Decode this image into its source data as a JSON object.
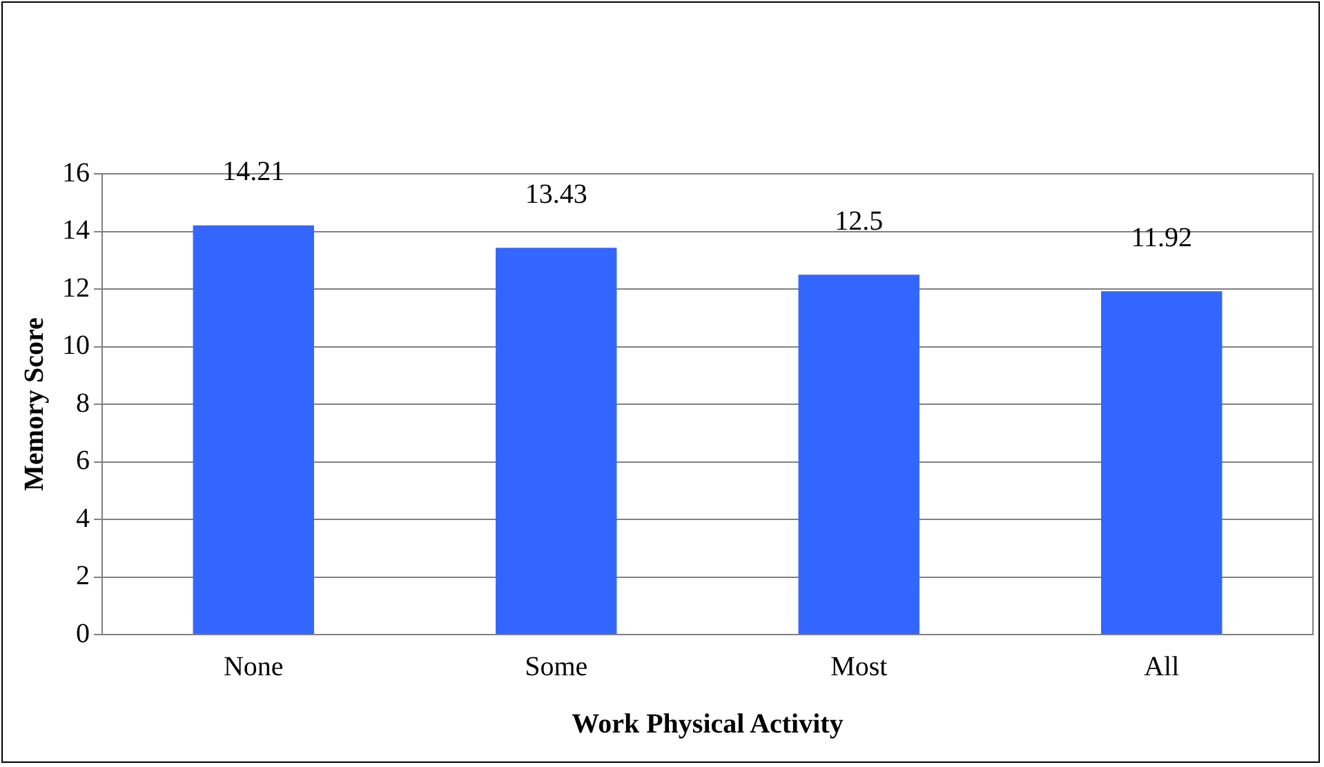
{
  "chart_data": {
    "type": "bar",
    "xlabel": "Work Physical Activity",
    "ylabel": "Memory Score",
    "categories": [
      "None",
      "Some",
      "Most",
      "All"
    ],
    "values": [
      14.21,
      13.43,
      12.5,
      11.92
    ],
    "color": "#3366ff",
    "ylim": [
      0,
      16
    ],
    "yticks": [
      0,
      2,
      4,
      6,
      8,
      10,
      12,
      14,
      16
    ],
    "grid": "y",
    "data_labels": true,
    "legend": false
  }
}
